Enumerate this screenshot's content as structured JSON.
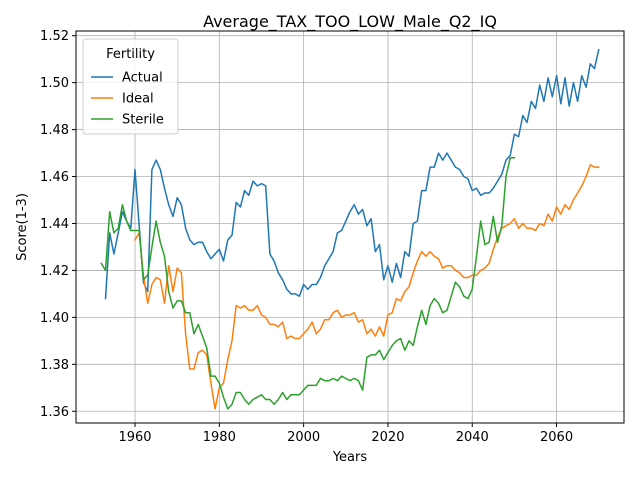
{
  "chart_data": {
    "type": "line",
    "title": "Average_TAX_TOO_LOW_Male_Q2_IQ",
    "xlabel": "Years",
    "ylabel": "Score(1-3)",
    "xlim": [
      1946,
      2076
    ],
    "ylim": [
      1.355,
      1.522
    ],
    "xticks": [
      1960,
      1980,
      2000,
      2020,
      2040,
      2060
    ],
    "yticks": [
      1.36,
      1.38,
      1.4,
      1.42,
      1.44,
      1.46,
      1.48,
      1.5,
      1.52
    ],
    "ytick_labels": [
      "1.36",
      "1.38",
      "1.40",
      "1.42",
      "1.44",
      "1.46",
      "1.48",
      "1.50",
      "1.52"
    ],
    "grid": true,
    "legend": {
      "title": "Fertility",
      "position": "top-left"
    },
    "series": [
      {
        "name": "Actual",
        "color": "#1f77b4",
        "x": [
          1953,
          1954,
          1955,
          1956,
          1957,
          1958,
          1959,
          1960,
          1961,
          1962,
          1963,
          1964,
          1965,
          1966,
          1967,
          1968,
          1969,
          1970,
          1971,
          1972,
          1973,
          1974,
          1975,
          1976,
          1977,
          1978,
          1979,
          1980,
          1981,
          1982,
          1983,
          1984,
          1985,
          1986,
          1987,
          1988,
          1989,
          1990,
          1991,
          1992,
          1993,
          1994,
          1995,
          1996,
          1997,
          1998,
          1999,
          2000,
          2001,
          2002,
          2003,
          2004,
          2005,
          2006,
          2007,
          2008,
          2009,
          2010,
          2011,
          2012,
          2013,
          2014,
          2015,
          2016,
          2017,
          2018,
          2019,
          2020,
          2021,
          2022,
          2023,
          2024,
          2025,
          2026,
          2027,
          2028,
          2029,
          2030,
          2031,
          2032,
          2033,
          2034,
          2035,
          2036,
          2037,
          2038,
          2039,
          2040,
          2041,
          2042,
          2043,
          2044,
          2045,
          2046,
          2047,
          2048,
          2049,
          2050,
          2051,
          2052,
          2053,
          2054,
          2055,
          2056,
          2057,
          2058,
          2059,
          2060,
          2061,
          2062,
          2063,
          2064,
          2065,
          2066,
          2067,
          2068,
          2069,
          2070
        ],
        "values": [
          1.408,
          1.436,
          1.427,
          1.436,
          1.445,
          1.441,
          1.438,
          1.463,
          1.439,
          1.415,
          1.411,
          1.463,
          1.467,
          1.463,
          1.455,
          1.448,
          1.443,
          1.451,
          1.448,
          1.438,
          1.433,
          1.431,
          1.432,
          1.432,
          1.428,
          1.425,
          1.427,
          1.429,
          1.424,
          1.433,
          1.435,
          1.449,
          1.447,
          1.454,
          1.452,
          1.458,
          1.456,
          1.457,
          1.456,
          1.427,
          1.424,
          1.419,
          1.416,
          1.412,
          1.41,
          1.41,
          1.409,
          1.414,
          1.412,
          1.414,
          1.414,
          1.417,
          1.422,
          1.425,
          1.428,
          1.436,
          1.437,
          1.441,
          1.445,
          1.448,
          1.444,
          1.446,
          1.439,
          1.442,
          1.428,
          1.431,
          1.416,
          1.422,
          1.415,
          1.423,
          1.417,
          1.428,
          1.426,
          1.44,
          1.441,
          1.454,
          1.454,
          1.464,
          1.464,
          1.47,
          1.467,
          1.47,
          1.467,
          1.464,
          1.463,
          1.46,
          1.459,
          1.454,
          1.455,
          1.452,
          1.453,
          1.453,
          1.455,
          1.458,
          1.461,
          1.467,
          1.469,
          1.478,
          1.477,
          1.486,
          1.483,
          1.492,
          1.489,
          1.499,
          1.492,
          1.502,
          1.494,
          1.503,
          1.491,
          1.502,
          1.49,
          1.5,
          1.492,
          1.503,
          1.498,
          1.508,
          1.506,
          1.514
        ]
      },
      {
        "name": "Ideal",
        "color": "#ff7f0e",
        "x": [
          1960,
          1961,
          1962,
          1963,
          1964,
          1965,
          1966,
          1967,
          1968,
          1969,
          1970,
          1971,
          1972,
          1973,
          1974,
          1975,
          1976,
          1977,
          1978,
          1979,
          1980,
          1981,
          1982,
          1983,
          1984,
          1985,
          1986,
          1987,
          1988,
          1989,
          1990,
          1991,
          1992,
          1993,
          1994,
          1995,
          1996,
          1997,
          1998,
          1999,
          2000,
          2001,
          2002,
          2003,
          2004,
          2005,
          2006,
          2007,
          2008,
          2009,
          2010,
          2011,
          2012,
          2013,
          2014,
          2015,
          2016,
          2017,
          2018,
          2019,
          2020,
          2021,
          2022,
          2023,
          2024,
          2025,
          2026,
          2027,
          2028,
          2029,
          2030,
          2031,
          2032,
          2033,
          2034,
          2035,
          2036,
          2037,
          2038,
          2039,
          2040,
          2041,
          2042,
          2043,
          2044,
          2045,
          2046,
          2047,
          2048,
          2049,
          2050,
          2051,
          2052,
          2053,
          2054,
          2055,
          2056,
          2057,
          2058,
          2059,
          2060,
          2061,
          2062,
          2063,
          2064,
          2065,
          2066,
          2067,
          2068,
          2069,
          2070
        ],
        "values": [
          1.433,
          1.436,
          1.418,
          1.406,
          1.414,
          1.417,
          1.416,
          1.406,
          1.422,
          1.411,
          1.421,
          1.419,
          1.393,
          1.378,
          1.378,
          1.385,
          1.386,
          1.384,
          1.372,
          1.361,
          1.37,
          1.372,
          1.382,
          1.39,
          1.405,
          1.404,
          1.405,
          1.403,
          1.403,
          1.405,
          1.401,
          1.4,
          1.397,
          1.397,
          1.396,
          1.398,
          1.391,
          1.392,
          1.391,
          1.391,
          1.393,
          1.395,
          1.398,
          1.393,
          1.395,
          1.399,
          1.399,
          1.402,
          1.403,
          1.4,
          1.401,
          1.401,
          1.402,
          1.398,
          1.399,
          1.393,
          1.395,
          1.392,
          1.396,
          1.392,
          1.401,
          1.402,
          1.408,
          1.407,
          1.411,
          1.413,
          1.419,
          1.424,
          1.428,
          1.426,
          1.428,
          1.426,
          1.425,
          1.421,
          1.422,
          1.422,
          1.42,
          1.419,
          1.417,
          1.417,
          1.418,
          1.418,
          1.42,
          1.421,
          1.423,
          1.429,
          1.434,
          1.438,
          1.439,
          1.44,
          1.442,
          1.438,
          1.44,
          1.438,
          1.438,
          1.437,
          1.44,
          1.439,
          1.444,
          1.441,
          1.447,
          1.444,
          1.448,
          1.446,
          1.45,
          1.453,
          1.456,
          1.46,
          1.465,
          1.464,
          1.464
        ]
      },
      {
        "name": "Sterile",
        "color": "#2ca02c",
        "x": [
          1952,
          1953,
          1954,
          1955,
          1956,
          1957,
          1958,
          1959,
          1960,
          1961,
          1962,
          1963,
          1964,
          1965,
          1966,
          1967,
          1968,
          1969,
          1970,
          1971,
          1972,
          1973,
          1974,
          1975,
          1976,
          1977,
          1978,
          1979,
          1980,
          1981,
          1982,
          1983,
          1984,
          1985,
          1986,
          1987,
          1988,
          1989,
          1990,
          1991,
          1992,
          1993,
          1994,
          1995,
          1996,
          1997,
          1998,
          1999,
          2000,
          2001,
          2002,
          2003,
          2004,
          2005,
          2006,
          2007,
          2008,
          2009,
          2010,
          2011,
          2012,
          2013,
          2014,
          2015,
          2016,
          2017,
          2018,
          2019,
          2020,
          2021,
          2022,
          2023,
          2024,
          2025,
          2026,
          2027,
          2028,
          2029,
          2030,
          2031,
          2032,
          2033,
          2034,
          2035,
          2036,
          2037,
          2038,
          2039,
          2040,
          2041,
          2042,
          2043,
          2044,
          2045,
          2046,
          2047,
          2048,
          2049,
          2050
        ],
        "values": [
          1.423,
          1.42,
          1.445,
          1.436,
          1.438,
          1.448,
          1.441,
          1.437,
          1.437,
          1.437,
          1.416,
          1.418,
          1.43,
          1.441,
          1.432,
          1.426,
          1.411,
          1.404,
          1.407,
          1.407,
          1.402,
          1.402,
          1.393,
          1.397,
          1.392,
          1.387,
          1.375,
          1.375,
          1.372,
          1.366,
          1.361,
          1.363,
          1.368,
          1.368,
          1.365,
          1.363,
          1.365,
          1.366,
          1.367,
          1.365,
          1.365,
          1.363,
          1.365,
          1.368,
          1.365,
          1.367,
          1.367,
          1.367,
          1.369,
          1.371,
          1.371,
          1.371,
          1.374,
          1.373,
          1.373,
          1.374,
          1.373,
          1.375,
          1.374,
          1.373,
          1.374,
          1.373,
          1.369,
          1.383,
          1.384,
          1.384,
          1.386,
          1.382,
          1.385,
          1.388,
          1.39,
          1.391,
          1.386,
          1.39,
          1.388,
          1.396,
          1.403,
          1.397,
          1.405,
          1.408,
          1.406,
          1.402,
          1.403,
          1.409,
          1.415,
          1.413,
          1.409,
          1.408,
          1.412,
          1.426,
          1.441,
          1.431,
          1.432,
          1.443,
          1.432,
          1.439,
          1.46,
          1.468,
          1.468
        ]
      }
    ]
  }
}
